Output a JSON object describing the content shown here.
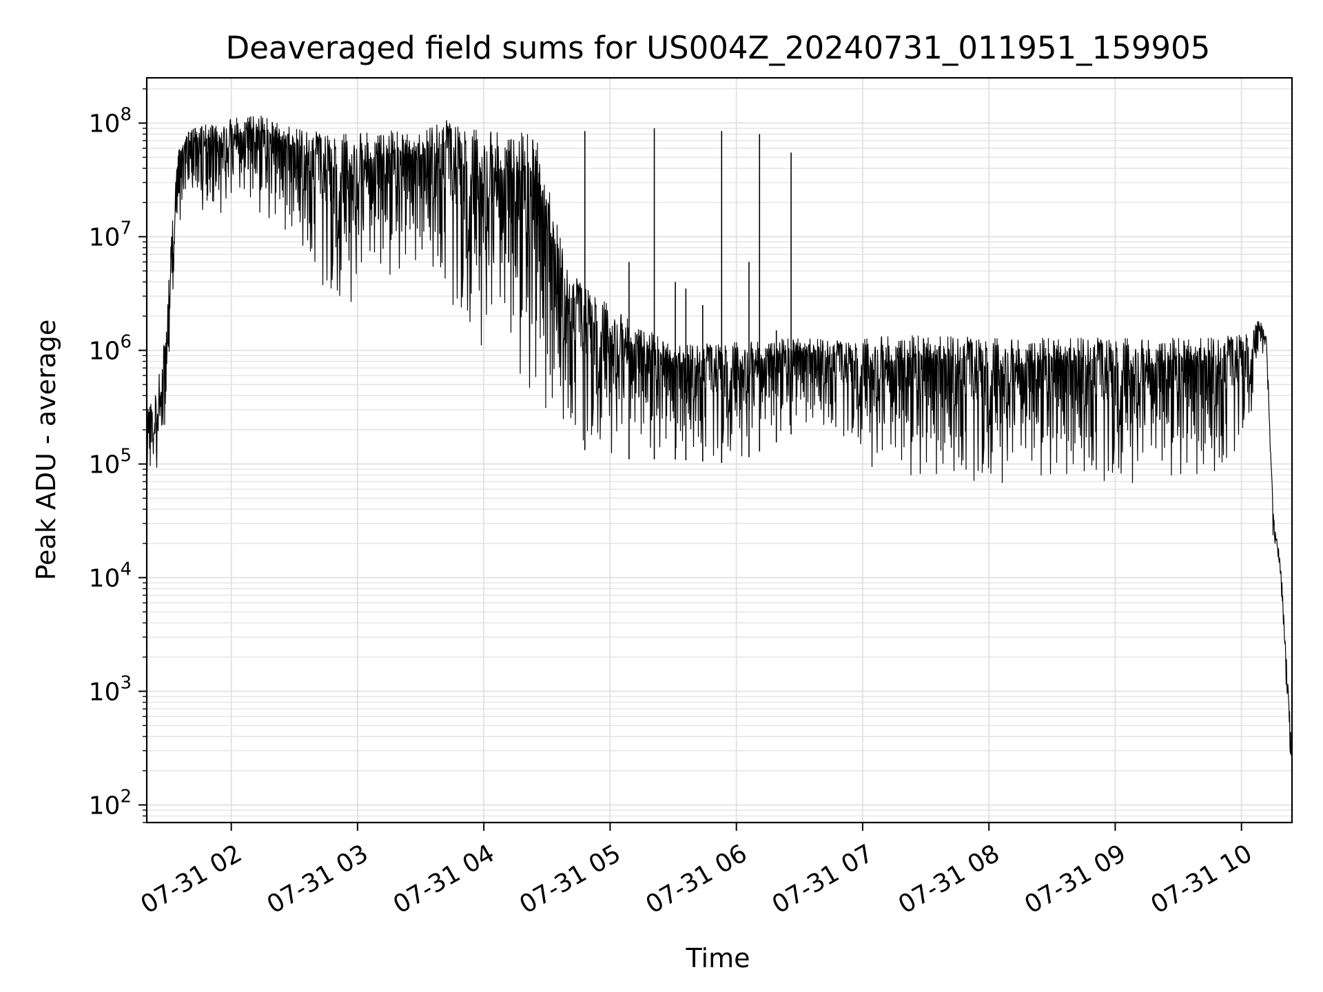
{
  "chart_data": {
    "type": "line",
    "title": "Deaveraged field sums for US004Z_20240731_011951_159905",
    "xlabel": "Time",
    "ylabel": "Peak ADU - average",
    "yscale": "log",
    "ylim": [
      70,
      250000000
    ],
    "xlim": [
      "2024-07-31T01:19:51",
      "2024-07-31T10:24:00"
    ],
    "grid": true,
    "line_color": "#000000",
    "grid_color": "#e3e3e3",
    "x_ticks": [
      {
        "value": "2024-07-31T02:00:00",
        "label": "07-31 02"
      },
      {
        "value": "2024-07-31T03:00:00",
        "label": "07-31 03"
      },
      {
        "value": "2024-07-31T04:00:00",
        "label": "07-31 04"
      },
      {
        "value": "2024-07-31T05:00:00",
        "label": "07-31 05"
      },
      {
        "value": "2024-07-31T06:00:00",
        "label": "07-31 06"
      },
      {
        "value": "2024-07-31T07:00:00",
        "label": "07-31 07"
      },
      {
        "value": "2024-07-31T08:00:00",
        "label": "07-31 08"
      },
      {
        "value": "2024-07-31T09:00:00",
        "label": "07-31 09"
      },
      {
        "value": "2024-07-31T10:00:00",
        "label": "07-31 10"
      }
    ],
    "y_ticks": [
      {
        "value": 100,
        "base": "10",
        "exp": "2"
      },
      {
        "value": 1000,
        "base": "10",
        "exp": "3"
      },
      {
        "value": 10000,
        "base": "10",
        "exp": "4"
      },
      {
        "value": 100000,
        "base": "10",
        "exp": "5"
      },
      {
        "value": 1000000,
        "base": "10",
        "exp": "6"
      },
      {
        "value": 10000000,
        "base": "10",
        "exp": "7"
      },
      {
        "value": 100000000,
        "base": "10",
        "exp": "8"
      }
    ],
    "envelope": [
      {
        "t": "2024-07-31T01:19:51",
        "low": 30000,
        "high": 300000
      },
      {
        "t": "2024-07-31T01:24:00",
        "low": 60000,
        "high": 450000
      },
      {
        "t": "2024-07-31T01:29:00",
        "low": 200000,
        "high": 1500000
      },
      {
        "t": "2024-07-31T01:32:00",
        "low": 2000000,
        "high": 15000000
      },
      {
        "t": "2024-07-31T01:35:00",
        "low": 12000000,
        "high": 60000000
      },
      {
        "t": "2024-07-31T01:40:00",
        "low": 15000000,
        "high": 90000000
      },
      {
        "t": "2024-07-31T01:50:00",
        "low": 15000000,
        "high": 100000000
      },
      {
        "t": "2024-07-31T02:10:00",
        "low": 15000000,
        "high": 125000000
      },
      {
        "t": "2024-07-31T02:30:00",
        "low": 8000000,
        "high": 90000000
      },
      {
        "t": "2024-07-31T02:50:00",
        "low": 2000000,
        "high": 80000000
      },
      {
        "t": "2024-07-31T03:10:00",
        "low": 3000000,
        "high": 90000000
      },
      {
        "t": "2024-07-31T03:30:00",
        "low": 5000000,
        "high": 80000000
      },
      {
        "t": "2024-07-31T03:40:00",
        "low": 3000000,
        "high": 110000000
      },
      {
        "t": "2024-07-31T03:55:00",
        "low": 1000000,
        "high": 90000000
      },
      {
        "t": "2024-07-31T04:10:00",
        "low": 700000,
        "high": 90000000
      },
      {
        "t": "2024-07-31T04:25:00",
        "low": 200000,
        "high": 80000000
      },
      {
        "t": "2024-07-31T04:40:00",
        "low": 150000,
        "high": 5000000
      },
      {
        "t": "2024-07-31T05:00:00",
        "low": 110000,
        "high": 2500000
      },
      {
        "t": "2024-07-31T05:30:00",
        "low": 110000,
        "high": 1100000
      },
      {
        "t": "2024-07-31T06:00:00",
        "low": 100000,
        "high": 1200000
      },
      {
        "t": "2024-07-31T06:30:00",
        "low": 200000,
        "high": 1300000
      },
      {
        "t": "2024-07-31T06:55:00",
        "low": 150000,
        "high": 1200000
      },
      {
        "t": "2024-07-31T07:10:00",
        "low": 60000,
        "high": 1400000
      },
      {
        "t": "2024-07-31T08:00:00",
        "low": 60000,
        "high": 1300000
      },
      {
        "t": "2024-07-31T09:00:00",
        "low": 60000,
        "high": 1300000
      },
      {
        "t": "2024-07-31T09:50:00",
        "low": 60000,
        "high": 1300000
      },
      {
        "t": "2024-07-31T10:05:00",
        "low": 250000,
        "high": 1500000
      },
      {
        "t": "2024-07-31T10:09:00",
        "low": 1000000,
        "high": 2000000
      },
      {
        "t": "2024-07-31T10:12:00",
        "low": 800000,
        "high": 1300000
      },
      {
        "t": "2024-07-31T10:15:00",
        "low": 20000,
        "high": 40000
      },
      {
        "t": "2024-07-31T10:19:00",
        "low": 6000,
        "high": 12000
      },
      {
        "t": "2024-07-31T10:24:00",
        "low": 80,
        "high": 300
      }
    ],
    "spikes": [
      {
        "t": "2024-07-31T04:48:00",
        "value": 85000000
      },
      {
        "t": "2024-07-31T05:09:00",
        "value": 6000000
      },
      {
        "t": "2024-07-31T05:21:00",
        "value": 90000000
      },
      {
        "t": "2024-07-31T05:31:00",
        "value": 4000000
      },
      {
        "t": "2024-07-31T05:36:00",
        "value": 3500000
      },
      {
        "t": "2024-07-31T05:44:00",
        "value": 2500000
      },
      {
        "t": "2024-07-31T05:53:00",
        "value": 85000000
      },
      {
        "t": "2024-07-31T06:06:00",
        "value": 6000000
      },
      {
        "t": "2024-07-31T06:11:00",
        "value": 80000000
      },
      {
        "t": "2024-07-31T06:19:00",
        "value": 1500000
      },
      {
        "t": "2024-07-31T06:26:00",
        "value": 55000000
      }
    ]
  }
}
